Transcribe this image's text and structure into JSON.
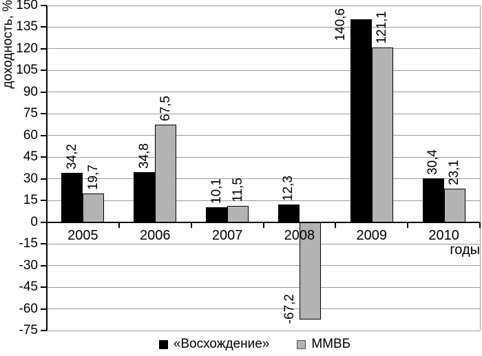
{
  "chart_data": {
    "type": "bar",
    "title": "",
    "ylabel": "доходность, %",
    "xlabel": "годы",
    "categories": [
      "2005",
      "2006",
      "2007",
      "2008",
      "2009",
      "2010"
    ],
    "series": [
      {
        "name": "«Восхождение»",
        "color": "#000000",
        "values": [
          34.2,
          34.8,
          10.1,
          12.3,
          140.6,
          30.4
        ]
      },
      {
        "name": "ММВБ",
        "color": "#b3b3b3",
        "values": [
          19.7,
          67.5,
          11.5,
          -67.2,
          121.1,
          23.1
        ]
      }
    ],
    "data_labels": {
      "2005": [
        "34,2",
        "19,7"
      ],
      "2006": [
        "34,8",
        "67,5"
      ],
      "2007": [
        "10,1",
        "11,5"
      ],
      "2008": [
        "12,3",
        "-67,2"
      ],
      "2009": [
        "140,6",
        "121,1"
      ],
      "2010": [
        "30,4",
        "23,1"
      ]
    },
    "ylim": [
      -75,
      150
    ],
    "ytick_step": 15,
    "value_decimal_separator": ",",
    "grid": true,
    "legend_position": "bottom"
  }
}
